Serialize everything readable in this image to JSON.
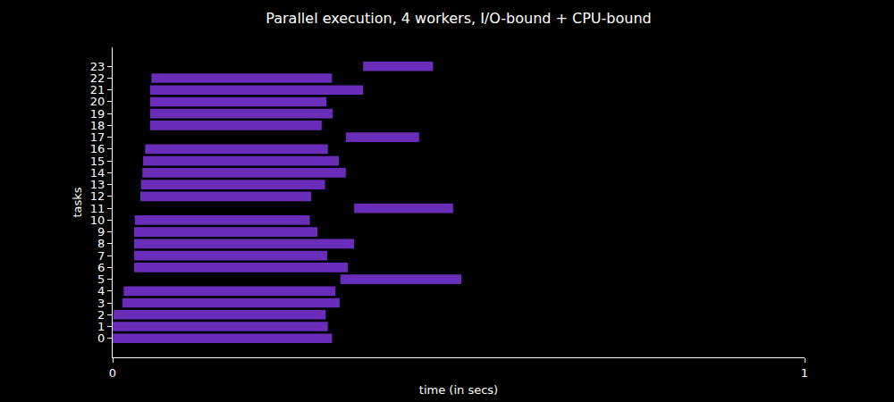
{
  "chart_data": {
    "type": "bar",
    "orientation": "horizontal",
    "title": "Parallel execution, 4 workers, I/O-bound + CPU-bound",
    "x_label": "time (in secs)",
    "y_label": "tasks",
    "categories": [
      "0",
      "1",
      "2",
      "3",
      "4",
      "5",
      "6",
      "7",
      "8",
      "9",
      "10",
      "11",
      "12",
      "13",
      "14",
      "15",
      "16",
      "17",
      "18",
      "19",
      "20",
      "21",
      "22",
      "23"
    ],
    "start": [
      0.0,
      0.0,
      0.001,
      0.014,
      0.016,
      0.329,
      0.031,
      0.031,
      0.031,
      0.031,
      0.032,
      0.349,
      0.04,
      0.041,
      0.043,
      0.044,
      0.047,
      0.337,
      0.054,
      0.054,
      0.054,
      0.054,
      0.056,
      0.362
    ],
    "end": [
      0.317,
      0.311,
      0.308,
      0.328,
      0.322,
      0.504,
      0.34,
      0.31,
      0.349,
      0.296,
      0.285,
      0.492,
      0.287,
      0.307,
      0.337,
      0.327,
      0.311,
      0.443,
      0.302,
      0.318,
      0.309,
      0.362,
      0.317,
      0.463
    ],
    "color": "#6a2dba",
    "xlim": [
      0,
      1
    ],
    "xticks": [
      0,
      1
    ],
    "grid": false
  }
}
